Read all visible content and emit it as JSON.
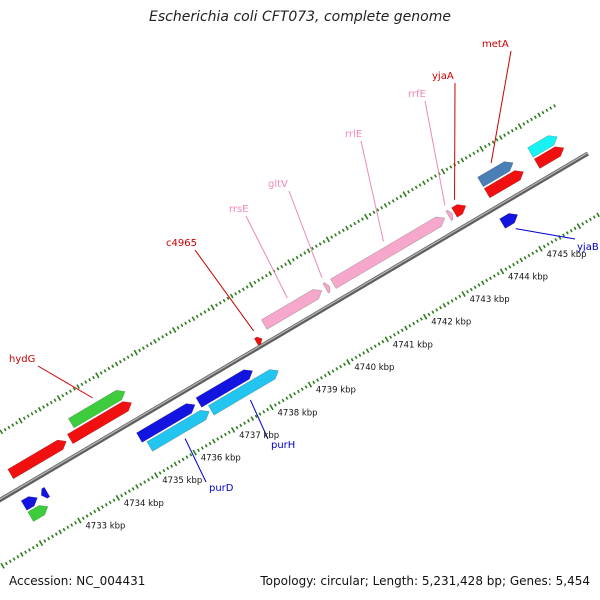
{
  "title": "Escherichia coli CFT073, complete genome",
  "footer": {
    "accession": "Accession: NC_004431",
    "stats": "Topology: circular; Length: 5,231,428 bp; Genes: 5,454"
  },
  "colors": {
    "backbone": "#8a8a8a",
    "tick": "#2f7d1e",
    "red": "#f01010",
    "blue": "#1414e0",
    "cyan": "#22c4f0",
    "aqua": "#18f2f2",
    "pink": "#f5a8cc",
    "green": "#3ccc3c",
    "steel": "#4a7fb5",
    "label_red": "#cc0000",
    "label_pink": "#ee88bb",
    "label_blue": "#0000cc"
  },
  "ticks": [
    {
      "label": "4733 kbp",
      "kbp": 4733
    },
    {
      "label": "4734 kbp",
      "kbp": 4734
    },
    {
      "label": "4735 kbp",
      "kbp": 4735
    },
    {
      "label": "4736 kbp",
      "kbp": 4736
    },
    {
      "label": "4737 kbp",
      "kbp": 4737
    },
    {
      "label": "4738 kbp",
      "kbp": 4738
    },
    {
      "label": "4739 kbp",
      "kbp": 4739
    },
    {
      "label": "4740 kbp",
      "kbp": 4740
    },
    {
      "label": "4741 kbp",
      "kbp": 4741
    },
    {
      "label": "4742 kbp",
      "kbp": 4742
    },
    {
      "label": "4743 kbp",
      "kbp": 4743
    },
    {
      "label": "4744 kbp",
      "kbp": 4744
    },
    {
      "label": "4745 kbp",
      "kbp": 4745
    }
  ],
  "genes": [
    {
      "id": "g1",
      "label": "",
      "start": 4732.2,
      "end": 4733.65,
      "track": "outer1",
      "strand": "+",
      "color": "red"
    },
    {
      "id": "g2",
      "label": "",
      "start": 4733.75,
      "end": 4735.35,
      "track": "outer1",
      "strand": "+",
      "color": "red"
    },
    {
      "id": "g3",
      "label": "hydG",
      "start": 4733.95,
      "end": 4735.35,
      "track": "outer2",
      "strand": "+",
      "color": "green"
    },
    {
      "id": "g4",
      "label": "",
      "start": 4735.1,
      "end": 4736.55,
      "track": "inner1",
      "strand": "+",
      "color": "blue"
    },
    {
      "id": "g5",
      "label": "",
      "start": 4736.65,
      "end": 4738.05,
      "track": "inner1",
      "strand": "+",
      "color": "blue"
    },
    {
      "id": "g6",
      "label": "purD",
      "start": 4735.2,
      "end": 4736.75,
      "track": "inner2",
      "strand": "+",
      "color": "cyan"
    },
    {
      "id": "g7",
      "label": "purH",
      "start": 4736.8,
      "end": 4738.55,
      "track": "inner2",
      "strand": "+",
      "color": "cyan"
    },
    {
      "id": "g8",
      "label": "c4965",
      "start": 4738.45,
      "end": 4738.6,
      "track": "backbone",
      "strand": "+",
      "color": "red"
    },
    {
      "id": "g9",
      "label": "rrsE",
      "start": 4738.8,
      "end": 4740.3,
      "track": "outer1",
      "strand": "+",
      "color": "pink"
    },
    {
      "id": "g10",
      "label": "gltV",
      "start": 4740.4,
      "end": 4740.5,
      "track": "outer1",
      "strand": "+",
      "color": "pink"
    },
    {
      "id": "g11",
      "label": "rrlE",
      "start": 4740.6,
      "end": 4743.5,
      "track": "outer1",
      "strand": "+",
      "color": "pink"
    },
    {
      "id": "g12",
      "label": "rrfE",
      "start": 4743.6,
      "end": 4743.7,
      "track": "outer1",
      "strand": "+",
      "color": "pink"
    },
    {
      "id": "g13",
      "label": "yjaA",
      "start": 4743.75,
      "end": 4744.05,
      "track": "outer1",
      "strand": "+",
      "color": "red"
    },
    {
      "id": "g14",
      "label": "",
      "start": 4744.6,
      "end": 4745.55,
      "track": "outer1",
      "strand": "+",
      "color": "red"
    },
    {
      "id": "g15",
      "label": "metA",
      "start": 4744.6,
      "end": 4745.45,
      "track": "outer2",
      "strand": "+",
      "color": "steel"
    },
    {
      "id": "g16",
      "label": "",
      "start": 4745.9,
      "end": 4746.6,
      "track": "outer2",
      "strand": "+",
      "color": "aqua"
    },
    {
      "id": "g17",
      "label": "",
      "start": 4745.9,
      "end": 4746.6,
      "track": "outer1",
      "strand": "+",
      "color": "red"
    },
    {
      "id": "g18",
      "label": "yjaB",
      "start": 4744.55,
      "end": 4744.95,
      "track": "inner1",
      "strand": "+",
      "color": "blue"
    },
    {
      "id": "g19",
      "label": "",
      "start": 4732.1,
      "end": 4732.45,
      "track": "inner1",
      "strand": "+",
      "color": "blue"
    },
    {
      "id": "g20",
      "label": "",
      "start": 4732.55,
      "end": 4732.7,
      "track": "inner1",
      "strand": "-",
      "color": "blue"
    },
    {
      "id": "g21",
      "label": "",
      "start": 4732.1,
      "end": 4732.55,
      "track": "inner2",
      "strand": "+",
      "color": "green"
    }
  ]
}
